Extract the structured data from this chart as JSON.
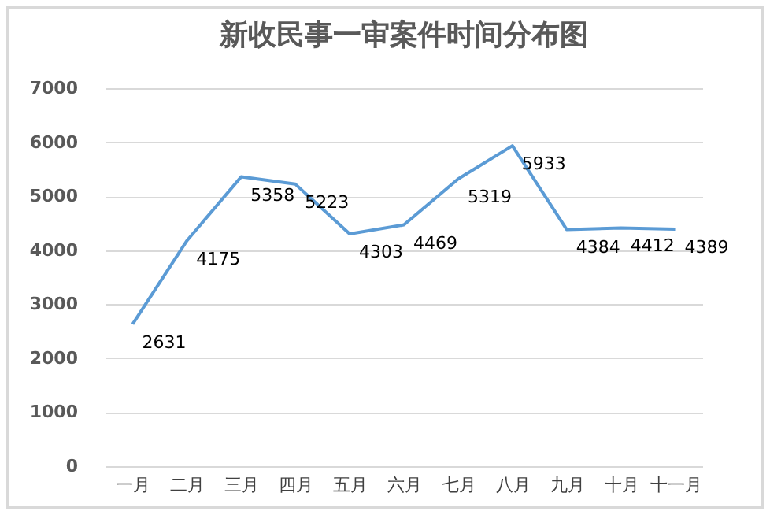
{
  "chart_data": {
    "type": "line",
    "title": "新收民事一审案件时间分布图",
    "categories": [
      "一月",
      "二月",
      "三月",
      "四月",
      "五月",
      "六月",
      "七月",
      "八月",
      "九月",
      "十月",
      "十一月"
    ],
    "series": [
      {
        "color": "#5b9bd5",
        "values": [
          2631,
          4175,
          5358,
          5223,
          4303,
          4469,
          5319,
          5933,
          4384,
          4412,
          4389
        ]
      }
    ],
    "ylim": [
      0,
      7000
    ],
    "yticks": [
      0,
      1000,
      2000,
      3000,
      4000,
      5000,
      6000,
      7000
    ],
    "grid": "y",
    "data_labels": true,
    "marker": "none",
    "line_style": "solid",
    "legend": false
  }
}
